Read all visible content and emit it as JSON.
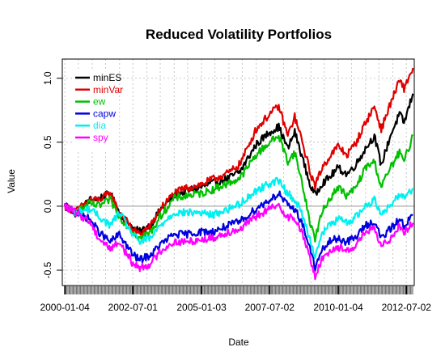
{
  "chart_data": {
    "type": "line",
    "title": "Reduced Volatility Portfolios",
    "xlabel": "Date",
    "ylabel": "Value",
    "xlim": [
      "1999-12-01",
      "2012-10-15"
    ],
    "ylim": [
      -0.62,
      1.15
    ],
    "y_ticks": [
      -0.5,
      0.0,
      0.5,
      1.0
    ],
    "y_tick_labels": [
      "-0.5",
      "0.0",
      "0.5",
      "1.0"
    ],
    "x_ticks": [
      "2000-01-04",
      "2002-07-01",
      "2005-01-03",
      "2007-07-02",
      "2010-01-04",
      "2012-07-02"
    ],
    "grid": true,
    "legend_position": "top-left",
    "series": [
      {
        "name": "minES",
        "color": "#000000",
        "points": [
          [
            "2000-01-04",
            0.0
          ],
          [
            "2000-06-01",
            -0.06
          ],
          [
            "2000-12-01",
            0.05
          ],
          [
            "2001-04-01",
            0.06
          ],
          [
            "2001-09-01",
            0.1
          ],
          [
            "2002-01-01",
            -0.05
          ],
          [
            "2002-07-01",
            -0.17
          ],
          [
            "2002-10-01",
            -0.2
          ],
          [
            "2003-03-01",
            -0.14
          ],
          [
            "2003-07-01",
            -0.03
          ],
          [
            "2004-01-01",
            0.08
          ],
          [
            "2004-06-01",
            0.12
          ],
          [
            "2005-01-01",
            0.15
          ],
          [
            "2005-06-01",
            0.18
          ],
          [
            "2006-01-01",
            0.22
          ],
          [
            "2006-06-01",
            0.27
          ],
          [
            "2007-01-01",
            0.48
          ],
          [
            "2007-07-01",
            0.58
          ],
          [
            "2007-11-01",
            0.62
          ],
          [
            "2008-03-01",
            0.45
          ],
          [
            "2008-06-01",
            0.58
          ],
          [
            "2008-09-01",
            0.4
          ],
          [
            "2009-01-01",
            0.15
          ],
          [
            "2009-03-01",
            0.09
          ],
          [
            "2009-06-01",
            0.18
          ],
          [
            "2009-09-01",
            0.22
          ],
          [
            "2010-01-01",
            0.3
          ],
          [
            "2010-05-01",
            0.25
          ],
          [
            "2010-09-01",
            0.33
          ],
          [
            "2011-01-01",
            0.45
          ],
          [
            "2011-05-01",
            0.55
          ],
          [
            "2011-08-01",
            0.32
          ],
          [
            "2011-12-01",
            0.55
          ],
          [
            "2012-04-01",
            0.72
          ],
          [
            "2012-06-01",
            0.65
          ],
          [
            "2012-09-28",
            0.88
          ]
        ]
      },
      {
        "name": "minVar",
        "color": "#e00000",
        "points": [
          [
            "2000-01-04",
            0.0
          ],
          [
            "2000-06-01",
            -0.04
          ],
          [
            "2000-12-01",
            0.05
          ],
          [
            "2001-04-01",
            0.05
          ],
          [
            "2001-09-01",
            0.1
          ],
          [
            "2002-01-01",
            -0.05
          ],
          [
            "2002-07-01",
            -0.18
          ],
          [
            "2002-10-01",
            -0.22
          ],
          [
            "2003-03-01",
            -0.15
          ],
          [
            "2003-07-01",
            -0.02
          ],
          [
            "2004-01-01",
            0.1
          ],
          [
            "2004-06-01",
            0.14
          ],
          [
            "2005-01-01",
            0.17
          ],
          [
            "2005-06-01",
            0.21
          ],
          [
            "2006-01-01",
            0.26
          ],
          [
            "2006-06-01",
            0.33
          ],
          [
            "2007-01-01",
            0.6
          ],
          [
            "2007-07-01",
            0.72
          ],
          [
            "2007-11-01",
            0.78
          ],
          [
            "2008-03-01",
            0.55
          ],
          [
            "2008-06-01",
            0.7
          ],
          [
            "2008-09-01",
            0.52
          ],
          [
            "2009-01-01",
            0.25
          ],
          [
            "2009-03-01",
            0.16
          ],
          [
            "2009-06-01",
            0.3
          ],
          [
            "2009-09-01",
            0.38
          ],
          [
            "2010-01-01",
            0.47
          ],
          [
            "2010-05-01",
            0.4
          ],
          [
            "2010-09-01",
            0.5
          ],
          [
            "2011-01-01",
            0.65
          ],
          [
            "2011-05-01",
            0.78
          ],
          [
            "2011-08-01",
            0.6
          ],
          [
            "2011-12-01",
            0.8
          ],
          [
            "2012-04-01",
            0.98
          ],
          [
            "2012-06-01",
            0.92
          ],
          [
            "2012-09-28",
            1.08
          ]
        ]
      },
      {
        "name": "ew",
        "color": "#00c000",
        "points": [
          [
            "2000-01-04",
            0.0
          ],
          [
            "2000-06-01",
            -0.05
          ],
          [
            "2000-12-01",
            0.02
          ],
          [
            "2001-04-01",
            0.0
          ],
          [
            "2001-09-01",
            0.05
          ],
          [
            "2002-01-01",
            -0.08
          ],
          [
            "2002-07-01",
            -0.2
          ],
          [
            "2002-10-01",
            -0.25
          ],
          [
            "2003-03-01",
            -0.2
          ],
          [
            "2003-07-01",
            -0.08
          ],
          [
            "2004-01-01",
            0.06
          ],
          [
            "2004-06-01",
            0.08
          ],
          [
            "2005-01-01",
            0.1
          ],
          [
            "2005-06-01",
            0.13
          ],
          [
            "2006-01-01",
            0.18
          ],
          [
            "2006-06-01",
            0.22
          ],
          [
            "2007-01-01",
            0.4
          ],
          [
            "2007-07-01",
            0.5
          ],
          [
            "2007-11-01",
            0.55
          ],
          [
            "2008-03-01",
            0.35
          ],
          [
            "2008-06-01",
            0.42
          ],
          [
            "2008-09-01",
            0.2
          ],
          [
            "2009-01-01",
            -0.15
          ],
          [
            "2009-03-01",
            -0.25
          ],
          [
            "2009-06-01",
            -0.05
          ],
          [
            "2009-09-01",
            0.05
          ],
          [
            "2010-01-01",
            0.15
          ],
          [
            "2010-05-01",
            0.08
          ],
          [
            "2010-09-01",
            0.15
          ],
          [
            "2011-01-01",
            0.3
          ],
          [
            "2011-05-01",
            0.35
          ],
          [
            "2011-08-01",
            0.15
          ],
          [
            "2011-12-01",
            0.3
          ],
          [
            "2012-04-01",
            0.42
          ],
          [
            "2012-06-01",
            0.35
          ],
          [
            "2012-09-28",
            0.55
          ]
        ]
      },
      {
        "name": "capw",
        "color": "#0000e0",
        "points": [
          [
            "2000-01-04",
            0.0
          ],
          [
            "2000-06-01",
            -0.05
          ],
          [
            "2000-12-01",
            -0.1
          ],
          [
            "2001-04-01",
            -0.2
          ],
          [
            "2001-09-01",
            -0.28
          ],
          [
            "2002-01-01",
            -0.22
          ],
          [
            "2002-07-01",
            -0.38
          ],
          [
            "2002-10-01",
            -0.42
          ],
          [
            "2003-03-01",
            -0.38
          ],
          [
            "2003-07-01",
            -0.3
          ],
          [
            "2004-01-01",
            -0.22
          ],
          [
            "2004-06-01",
            -0.22
          ],
          [
            "2005-01-01",
            -0.2
          ],
          [
            "2005-06-01",
            -0.2
          ],
          [
            "2006-01-01",
            -0.15
          ],
          [
            "2006-06-01",
            -0.12
          ],
          [
            "2007-01-01",
            -0.02
          ],
          [
            "2007-07-01",
            0.05
          ],
          [
            "2007-11-01",
            0.1
          ],
          [
            "2008-03-01",
            0.0
          ],
          [
            "2008-06-01",
            -0.02
          ],
          [
            "2008-09-01",
            -0.12
          ],
          [
            "2009-01-01",
            -0.35
          ],
          [
            "2009-03-01",
            -0.48
          ],
          [
            "2009-06-01",
            -0.35
          ],
          [
            "2009-09-01",
            -0.28
          ],
          [
            "2010-01-01",
            -0.25
          ],
          [
            "2010-05-01",
            -0.28
          ],
          [
            "2010-09-01",
            -0.24
          ],
          [
            "2011-01-01",
            -0.15
          ],
          [
            "2011-05-01",
            -0.12
          ],
          [
            "2011-08-01",
            -0.25
          ],
          [
            "2011-12-01",
            -0.18
          ],
          [
            "2012-04-01",
            -0.1
          ],
          [
            "2012-06-01",
            -0.15
          ],
          [
            "2012-09-28",
            -0.07
          ]
        ]
      },
      {
        "name": "dia",
        "color": "#00f0f0",
        "points": [
          [
            "2000-01-04",
            0.0
          ],
          [
            "2000-06-01",
            -0.05
          ],
          [
            "2000-12-01",
            -0.02
          ],
          [
            "2001-04-01",
            -0.08
          ],
          [
            "2001-09-01",
            -0.15
          ],
          [
            "2002-01-01",
            -0.05
          ],
          [
            "2002-07-01",
            -0.22
          ],
          [
            "2002-10-01",
            -0.28
          ],
          [
            "2003-03-01",
            -0.25
          ],
          [
            "2003-07-01",
            -0.15
          ],
          [
            "2004-01-01",
            -0.05
          ],
          [
            "2004-06-01",
            -0.05
          ],
          [
            "2005-01-01",
            -0.05
          ],
          [
            "2005-06-01",
            -0.07
          ],
          [
            "2006-01-01",
            -0.02
          ],
          [
            "2006-06-01",
            0.02
          ],
          [
            "2007-01-01",
            0.12
          ],
          [
            "2007-07-01",
            0.18
          ],
          [
            "2007-11-01",
            0.2
          ],
          [
            "2008-03-01",
            0.1
          ],
          [
            "2008-06-01",
            0.05
          ],
          [
            "2008-09-01",
            -0.05
          ],
          [
            "2009-01-01",
            -0.28
          ],
          [
            "2009-03-01",
            -0.38
          ],
          [
            "2009-06-01",
            -0.22
          ],
          [
            "2009-09-01",
            -0.15
          ],
          [
            "2010-01-01",
            -0.1
          ],
          [
            "2010-05-01",
            -0.13
          ],
          [
            "2010-09-01",
            -0.08
          ],
          [
            "2011-01-01",
            0.0
          ],
          [
            "2011-05-01",
            0.05
          ],
          [
            "2011-08-01",
            -0.05
          ],
          [
            "2011-12-01",
            0.0
          ],
          [
            "2012-04-01",
            0.1
          ],
          [
            "2012-06-01",
            0.07
          ],
          [
            "2012-09-28",
            0.14
          ]
        ]
      },
      {
        "name": "spy",
        "color": "#ff00ff",
        "points": [
          [
            "2000-01-04",
            0.0
          ],
          [
            "2000-06-01",
            -0.05
          ],
          [
            "2000-12-01",
            -0.12
          ],
          [
            "2001-04-01",
            -0.25
          ],
          [
            "2001-09-01",
            -0.33
          ],
          [
            "2002-01-01",
            -0.28
          ],
          [
            "2002-07-01",
            -0.45
          ],
          [
            "2002-10-01",
            -0.48
          ],
          [
            "2003-03-01",
            -0.45
          ],
          [
            "2003-07-01",
            -0.35
          ],
          [
            "2004-01-01",
            -0.28
          ],
          [
            "2004-06-01",
            -0.28
          ],
          [
            "2005-01-01",
            -0.26
          ],
          [
            "2005-06-01",
            -0.25
          ],
          [
            "2006-01-01",
            -0.2
          ],
          [
            "2006-06-01",
            -0.18
          ],
          [
            "2007-01-01",
            -0.08
          ],
          [
            "2007-07-01",
            -0.02
          ],
          [
            "2007-11-01",
            0.0
          ],
          [
            "2008-03-01",
            -0.08
          ],
          [
            "2008-06-01",
            -0.1
          ],
          [
            "2008-09-01",
            -0.2
          ],
          [
            "2009-01-01",
            -0.42
          ],
          [
            "2009-03-01",
            -0.55
          ],
          [
            "2009-06-01",
            -0.42
          ],
          [
            "2009-09-01",
            -0.35
          ],
          [
            "2010-01-01",
            -0.32
          ],
          [
            "2010-05-01",
            -0.35
          ],
          [
            "2010-09-01",
            -0.3
          ],
          [
            "2011-01-01",
            -0.2
          ],
          [
            "2011-05-01",
            -0.18
          ],
          [
            "2011-08-01",
            -0.32
          ],
          [
            "2011-12-01",
            -0.25
          ],
          [
            "2012-04-01",
            -0.15
          ],
          [
            "2012-06-01",
            -0.2
          ],
          [
            "2012-09-28",
            -0.13
          ]
        ]
      }
    ]
  }
}
